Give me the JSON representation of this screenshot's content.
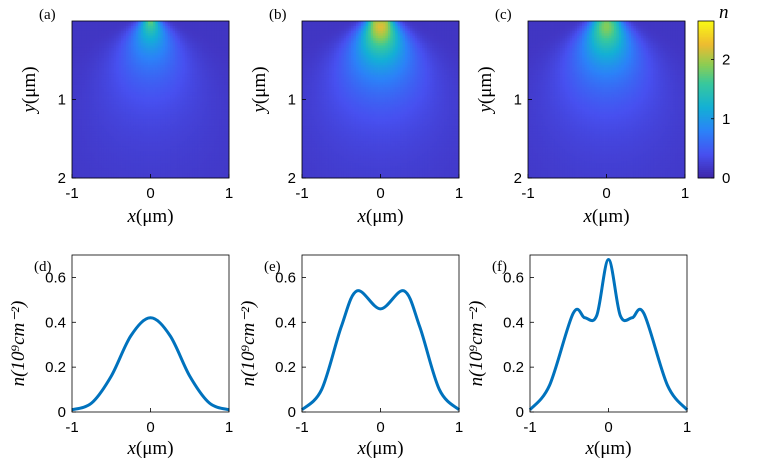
{
  "chart_data": [
    {
      "type": "heatmap",
      "panel_label": "(a)",
      "xlabel_var": "x",
      "xlabel_unit": "(μm)",
      "ylabel_var": "y",
      "ylabel_unit": "(μm)",
      "xlim": [
        -1,
        1
      ],
      "ylim": [
        0,
        2
      ],
      "x_ticks": [
        "-1",
        "0",
        "1"
      ],
      "y_ticks": [
        "1",
        "2"
      ],
      "y_reversed": true,
      "peaks": [
        {
          "x": 0,
          "y": 0,
          "n": 1.4
        }
      ]
    },
    {
      "type": "heatmap",
      "panel_label": "(b)",
      "xlabel_var": "x",
      "xlabel_unit": "(μm)",
      "ylabel_var": "y",
      "ylabel_unit": "(μm)",
      "xlim": [
        -1,
        1
      ],
      "ylim": [
        0,
        2
      ],
      "x_ticks": [
        "-1",
        "0",
        "1"
      ],
      "y_ticks": [
        "1",
        "2"
      ],
      "y_reversed": true,
      "peaks": [
        {
          "x": -0.08,
          "y": 0,
          "n": 2.4
        },
        {
          "x": 0.08,
          "y": 0,
          "n": 2.4
        }
      ]
    },
    {
      "type": "heatmap",
      "panel_label": "(c)",
      "xlabel_var": "x",
      "xlabel_unit": "(μm)",
      "ylabel_var": "y",
      "ylabel_unit": "(μm)",
      "xlim": [
        -1,
        1
      ],
      "ylim": [
        0,
        2
      ],
      "x_ticks": [
        "-1",
        "0",
        "1"
      ],
      "y_ticks": [
        "1",
        "2"
      ],
      "y_reversed": true,
      "peaks": [
        {
          "x": 0,
          "y": 0,
          "n": 2.6
        },
        {
          "x": -0.12,
          "y": 0,
          "n": 1.8
        },
        {
          "x": 0.12,
          "y": 0,
          "n": 1.8
        }
      ],
      "colorbar": {
        "label": "n",
        "range": [
          0,
          2.65
        ],
        "ticks": [
          0,
          1,
          2
        ],
        "tick_labels": [
          "0",
          "1",
          "2"
        ],
        "colormap": "parula"
      }
    },
    {
      "type": "line",
      "panel_label": "(d)",
      "xlabel_var": "x",
      "xlabel_unit": "(μm)",
      "ylabel": "n(10⁹cm⁻²)",
      "xlim": [
        -1,
        1
      ],
      "ylim": [
        0,
        0.7
      ],
      "x_ticks": [
        "-1",
        "0",
        "1"
      ],
      "y_ticks": [
        "0",
        "0.2",
        "0.4",
        "0.6"
      ],
      "line_color": "#0072BD",
      "series": [
        {
          "x": [
            -1,
            -0.75,
            -0.5,
            -0.25,
            0,
            0.25,
            0.5,
            0.75,
            1
          ],
          "y": [
            0.01,
            0.04,
            0.16,
            0.34,
            0.42,
            0.34,
            0.16,
            0.04,
            0.01
          ]
        }
      ]
    },
    {
      "type": "line",
      "panel_label": "(e)",
      "xlabel_var": "x",
      "xlabel_unit": "(μm)",
      "ylabel": "n(10⁹cm⁻²)",
      "xlim": [
        -1,
        1
      ],
      "ylim": [
        0,
        0.7
      ],
      "x_ticks": [
        "-1",
        "0",
        "1"
      ],
      "y_ticks": [
        "0",
        "0.2",
        "0.4",
        "0.6"
      ],
      "line_color": "#0072BD",
      "series": [
        {
          "x": [
            -1,
            -0.75,
            -0.5,
            -0.3,
            0,
            0.3,
            0.5,
            0.75,
            1
          ],
          "y": [
            0.01,
            0.1,
            0.38,
            0.54,
            0.46,
            0.54,
            0.38,
            0.1,
            0.01
          ]
        }
      ]
    },
    {
      "type": "line",
      "panel_label": "(f)",
      "xlabel_var": "x",
      "xlabel_unit": "(μm)",
      "ylabel": "n(10⁹cm⁻²)",
      "xlim": [
        -1,
        1
      ],
      "ylim": [
        0,
        0.7
      ],
      "x_ticks": [
        "-1",
        "0",
        "1"
      ],
      "y_ticks": [
        "0",
        "0.2",
        "0.4",
        "0.6"
      ],
      "line_color": "#0072BD",
      "series": [
        {
          "x": [
            -1,
            -0.75,
            -0.45,
            -0.3,
            -0.15,
            0,
            0.15,
            0.3,
            0.45,
            0.75,
            1
          ],
          "y": [
            0.01,
            0.12,
            0.44,
            0.42,
            0.43,
            0.68,
            0.43,
            0.42,
            0.44,
            0.12,
            0.01
          ]
        }
      ]
    }
  ]
}
